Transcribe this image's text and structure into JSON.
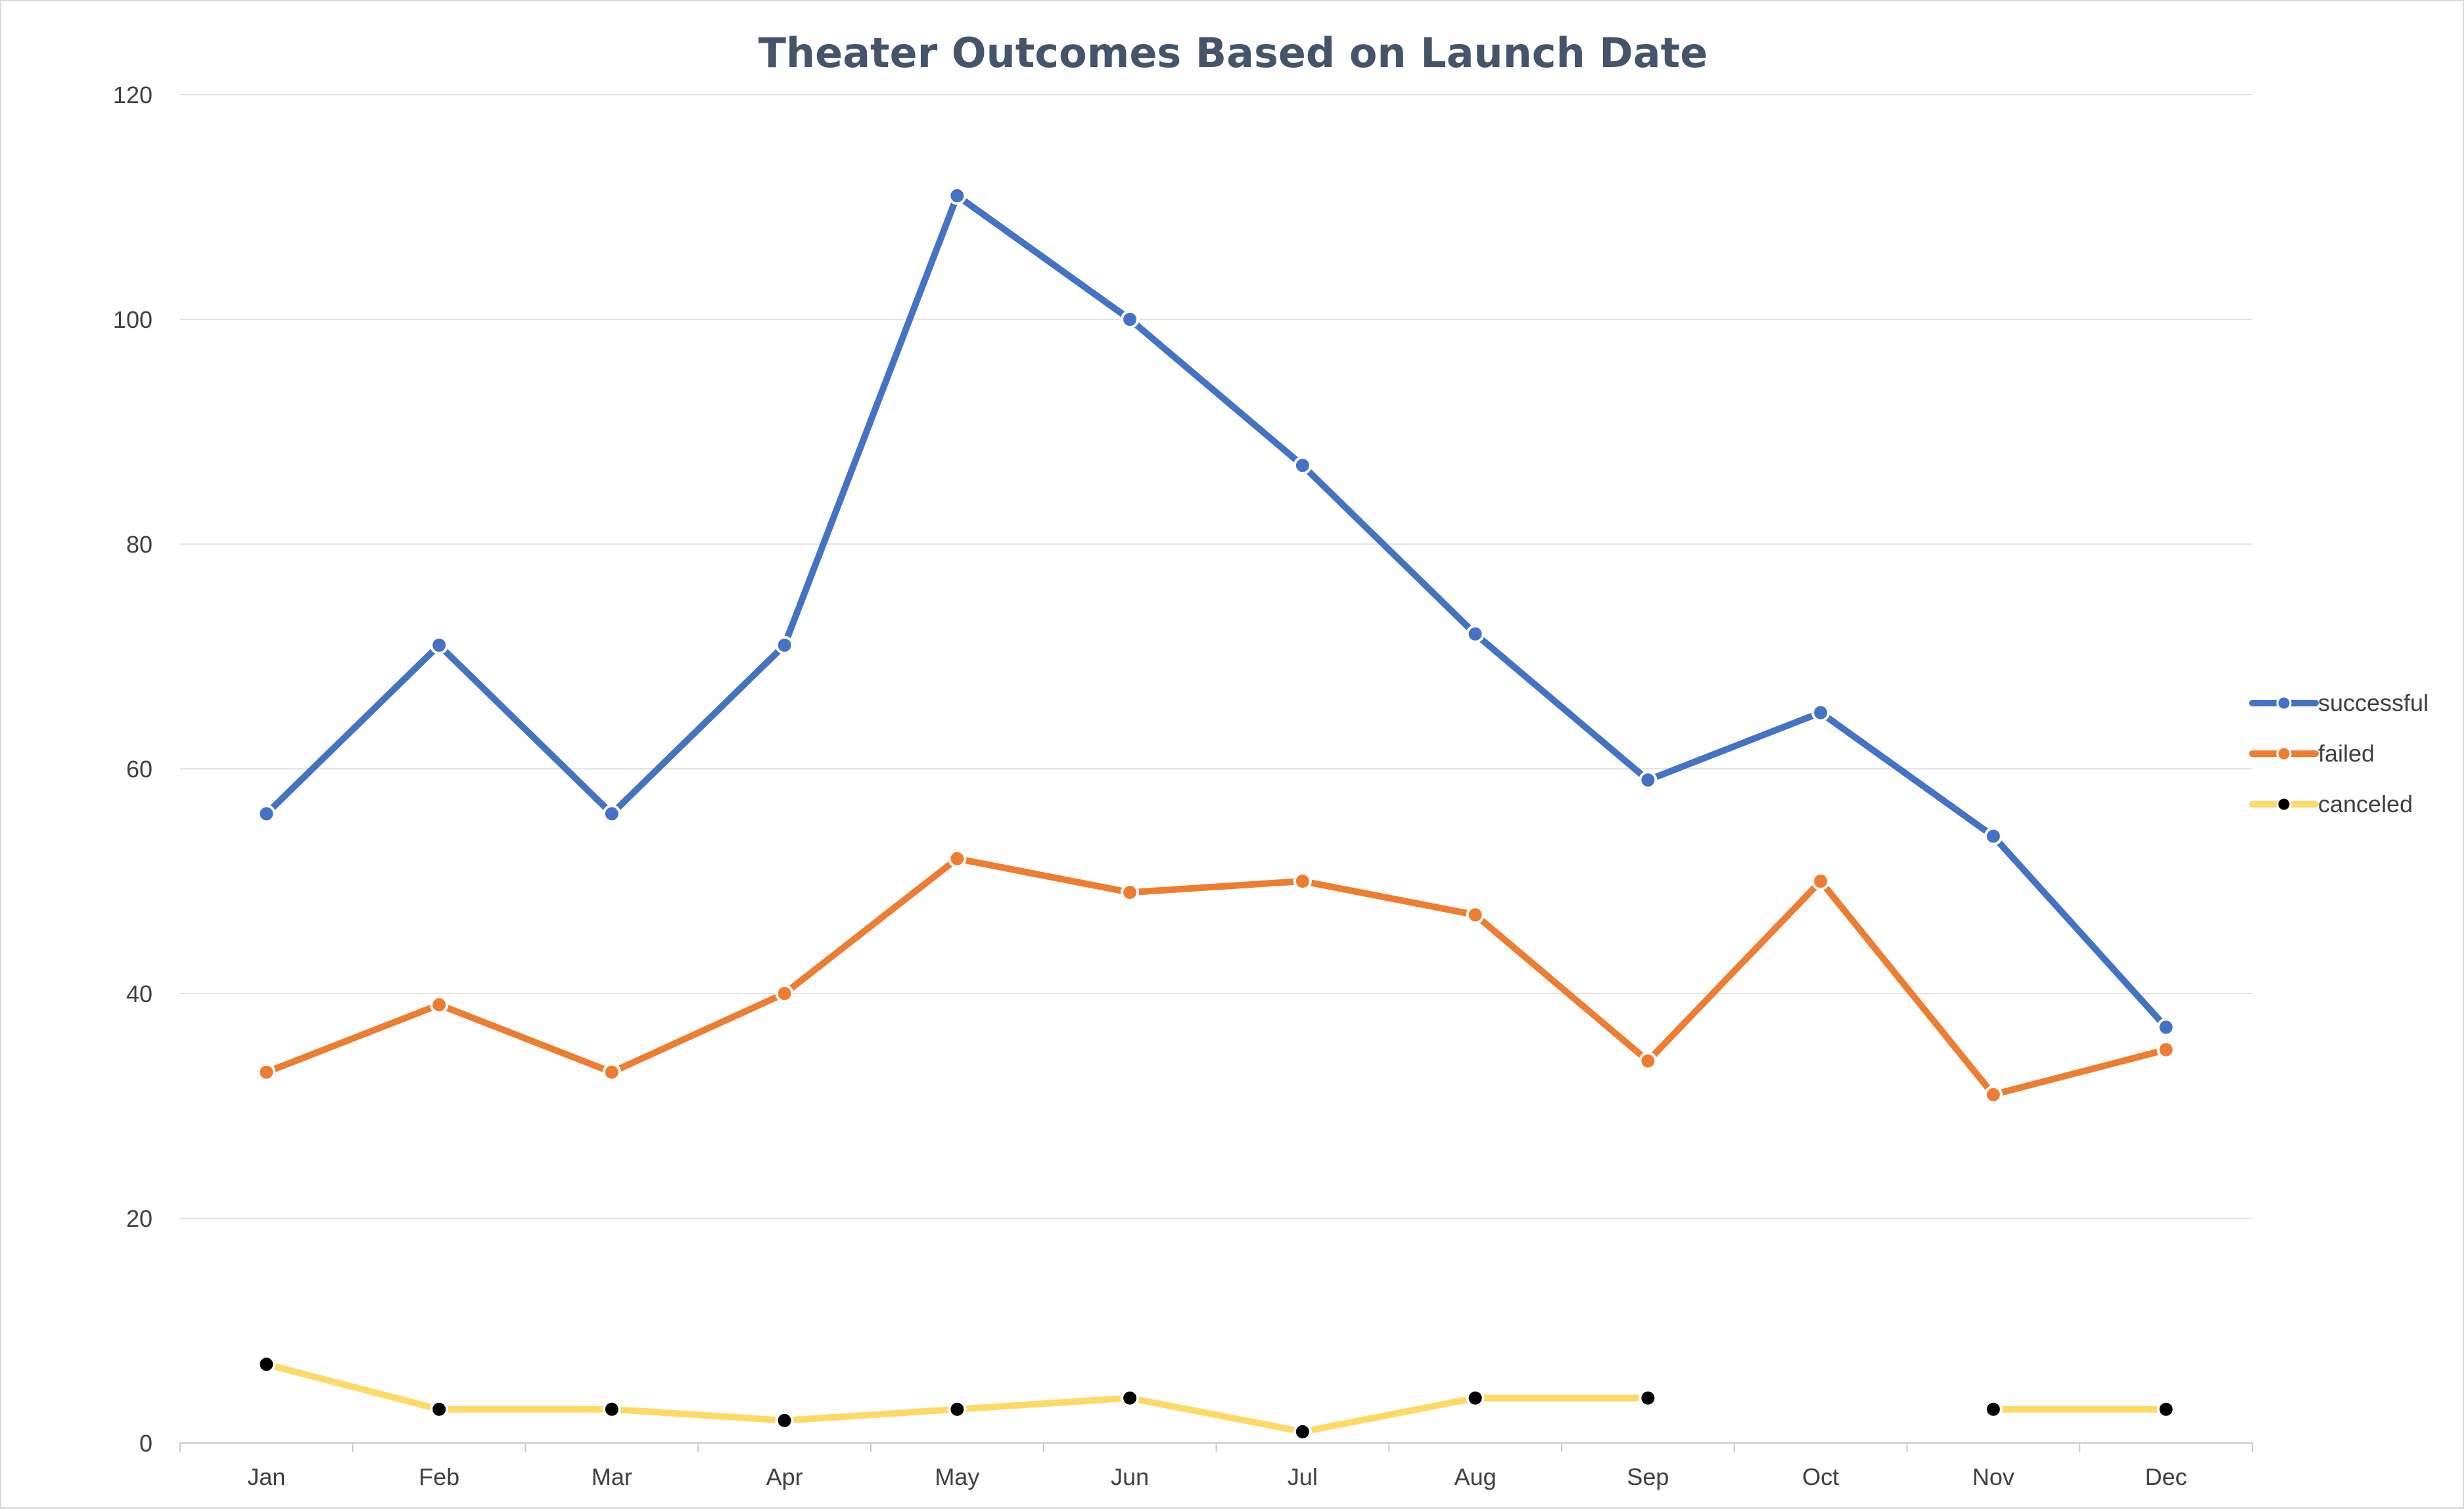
{
  "chart_data": {
    "type": "line",
    "title": "Theater Outcomes Based on Launch Date",
    "xlabel": "",
    "ylabel": "",
    "categories": [
      "Jan",
      "Feb",
      "Mar",
      "Apr",
      "May",
      "Jun",
      "Jul",
      "Aug",
      "Sep",
      "Oct",
      "Nov",
      "Dec"
    ],
    "ylim": [
      0,
      120
    ],
    "yticks": [
      "0",
      "20",
      "40",
      "60",
      "80",
      "100",
      "120"
    ],
    "grid": true,
    "legend_position": "right",
    "series": [
      {
        "name": "successful",
        "color": "#4472c4",
        "marker_color": "#4472c4",
        "values": [
          56,
          71,
          56,
          71,
          111,
          100,
          87,
          72,
          59,
          65,
          54,
          37
        ]
      },
      {
        "name": "failed",
        "color": "#ed7d31",
        "marker_color": "#ed7d31",
        "values": [
          33,
          39,
          33,
          40,
          52,
          49,
          50,
          47,
          34,
          50,
          31,
          35
        ]
      },
      {
        "name": "canceled",
        "color": "#ffd966",
        "marker_color": "#000000",
        "values": [
          7,
          3,
          3,
          2,
          3,
          4,
          1,
          4,
          4,
          null,
          3,
          3
        ]
      }
    ]
  }
}
